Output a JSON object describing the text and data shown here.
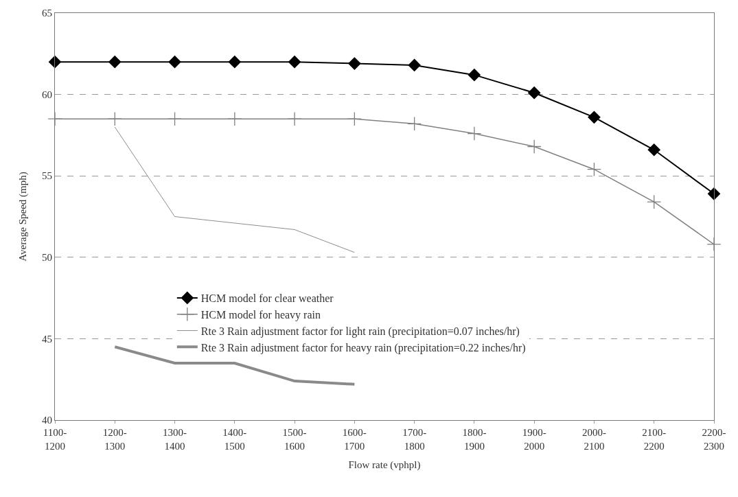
{
  "chart_data": {
    "type": "line",
    "xlabel": "Flow rate (vphpl)",
    "ylabel": "Average Speed (mph)",
    "categories": [
      "1100-1200",
      "1200-1300",
      "1300-1400",
      "1400-1500",
      "1500-1600",
      "1600-1700",
      "1700-1800",
      "1800-1900",
      "1900-2000",
      "2000-2100",
      "2100-2200",
      "2200-2300"
    ],
    "series": [
      {
        "name": "HCM model for clear weather",
        "color": "#000000",
        "marker": "diamond",
        "values": [
          62.0,
          62.0,
          62.0,
          62.0,
          62.0,
          61.9,
          61.8,
          61.2,
          60.1,
          58.6,
          56.6,
          53.9
        ]
      },
      {
        "name": "HCM model for heavy rain",
        "color": "#808080",
        "marker": "cross",
        "values": [
          58.5,
          58.5,
          58.5,
          58.5,
          58.5,
          58.5,
          58.2,
          57.6,
          56.8,
          55.4,
          53.4,
          50.8
        ]
      },
      {
        "name": "Rte 3 Rain adjustment factor for light rain (precipitation=0.07 inches/hr)",
        "color": "#8c8c8c",
        "marker": "none",
        "values": [
          null,
          58.0,
          52.5,
          52.1,
          51.7,
          50.3,
          null,
          null,
          null,
          null,
          null,
          null
        ]
      },
      {
        "name": "Rte 3 Rain adjustment factor for heavy rain (precipitation=0.22 inches/hr)",
        "color": "#8a8a8a",
        "marker": "none",
        "values": [
          null,
          44.5,
          43.5,
          43.5,
          42.4,
          42.2,
          null,
          null,
          null,
          null,
          null,
          null
        ]
      }
    ],
    "ylim": [
      40,
      65
    ],
    "yticks": [
      40,
      45,
      50,
      55,
      60,
      65
    ],
    "grid": "y",
    "legend": "bottom"
  }
}
